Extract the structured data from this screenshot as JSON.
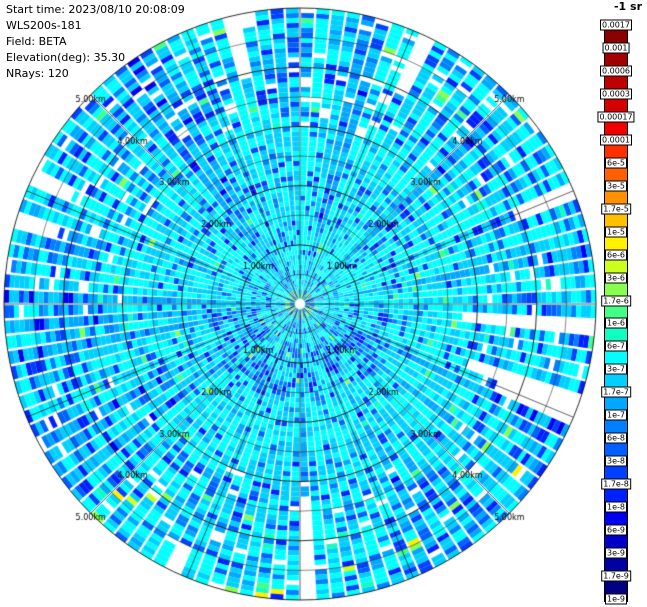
{
  "header": {
    "lines": [
      "Start time: 2023/08/10 20:08:09",
      "WLS200s-181",
      "Field: BETA",
      "Elevation(deg): 35.30",
      "NRays: 120"
    ]
  },
  "chart_data": {
    "type": "heatmap",
    "projection": "polar",
    "instrument": "WLS200s-181",
    "field": "BETA",
    "start_time": "2023/08/10 20:08:09",
    "elevation_deg": 35.3,
    "n_rays": 120,
    "n_gates": 60,
    "max_range_km": 5.0,
    "range_rings_km": [
      1,
      2,
      3,
      4,
      5
    ],
    "ring_labels": [
      "1.00km",
      "2.00km",
      "3.00km",
      "4.00km",
      "5.00km"
    ],
    "grid": {
      "color": "#000000",
      "n_spokes": 16,
      "ring_step_km": 0.5
    },
    "colorbar": {
      "title": "-1 sr",
      "scale": "log",
      "ticks": [
        "0.0017",
        "0.001",
        "0.0006",
        "0.0003",
        "0.00017",
        "0.0001",
        "6e-5",
        "3e-5",
        "1.7e-5",
        "1e-5",
        "6e-6",
        "3e-6",
        "1.7e-6",
        "1e-6",
        "6e-7",
        "3e-7",
        "1.7e-7",
        "1e-7",
        "6e-8",
        "3e-8",
        "1.7e-8",
        "1e-8",
        "6e-9",
        "3e-9",
        "1.7e-9",
        "1e-9"
      ],
      "colors_top_to_bottom": [
        "#8b0000",
        "#a30000",
        "#bd0000",
        "#d60000",
        "#f00000",
        "#ff3000",
        "#ff6000",
        "#ff9000",
        "#ffc000",
        "#fff000",
        "#ccff20",
        "#88ff50",
        "#44ff88",
        "#10ffc0",
        "#00ffff",
        "#00d0ff",
        "#00a8ff",
        "#0080ff",
        "#0060ff",
        "#0040ff",
        "#0020ff",
        "#0000f0",
        "#0000c8",
        "#0000a0",
        "#000080"
      ]
    },
    "value_summary": "Full 360-degree PPI scan of lidar attenuated backscatter (BETA). Dominant values ~3e-7 to 2e-6 (cyan) across all ranges; radial streaks and an annulus near 1-1.5 km in the lower half at ~1e-8 to 1e-7 (blue); sparse 3e-6 to 1e-5 speckles (green/yellow) near the center and the southern rim; scattered white gaps (missing gates) beyond ~3 km and at the outer edge.",
    "render_seed": 20230810
  },
  "plot": {
    "background": "#ffffff",
    "grid_color": "#000000"
  }
}
